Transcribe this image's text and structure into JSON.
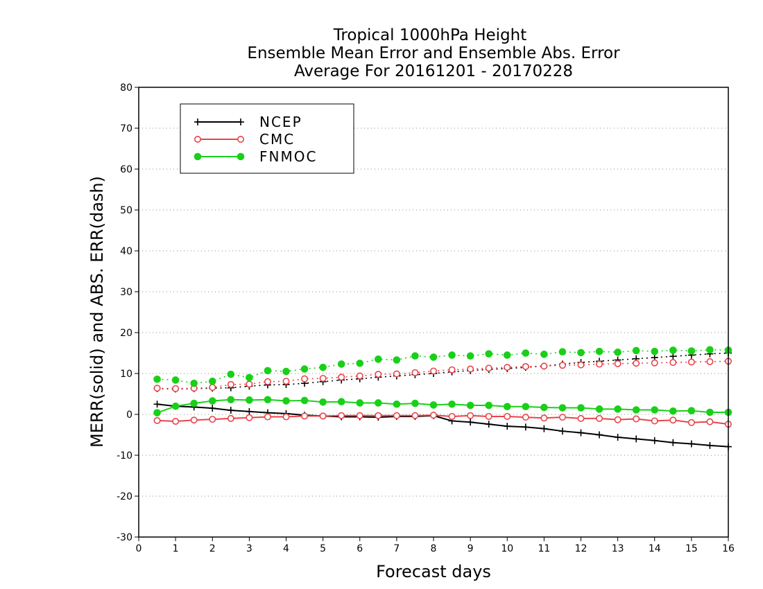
{
  "chart_data": {
    "type": "line",
    "title": [
      "Tropical 1000hPa Height",
      "Ensemble Mean Error and Ensemble Abs. Error",
      "Average For 20161201 - 20170228"
    ],
    "xlabel": "Forecast days",
    "ylabel": "MERR(solid) and ABS. ERR(dash)",
    "xlim": [
      0,
      16
    ],
    "ylim": [
      -30,
      80
    ],
    "x_ticks": [
      0,
      1,
      2,
      3,
      4,
      5,
      6,
      7,
      8,
      9,
      10,
      11,
      12,
      13,
      14,
      15,
      16
    ],
    "y_ticks": [
      -30,
      -20,
      -10,
      0,
      10,
      20,
      30,
      40,
      50,
      60,
      70,
      80
    ],
    "grid": "horizontal dotted",
    "legend_position": "top-left",
    "x": [
      0.5,
      1,
      1.5,
      2,
      2.5,
      3,
      3.5,
      4,
      4.5,
      5,
      5.5,
      6,
      6.5,
      7,
      7.5,
      8,
      8.5,
      9,
      9.5,
      10,
      10.5,
      11,
      11.5,
      12,
      12.5,
      13,
      13.5,
      14,
      14.5,
      15,
      15.5,
      16
    ],
    "series": [
      {
        "name": "NCEP",
        "color": "#000000",
        "marker": "plus",
        "merr": [
          2.5,
          2.0,
          1.8,
          1.5,
          1.0,
          0.7,
          0.4,
          0.2,
          -0.2,
          -0.4,
          -0.6,
          -0.6,
          -0.7,
          -0.5,
          -0.5,
          -0.3,
          -1.6,
          -1.9,
          -2.4,
          -2.9,
          -3.1,
          -3.5,
          -4.1,
          -4.5,
          -5.0,
          -5.6,
          -6.0,
          -6.4,
          -6.9,
          -7.2,
          -7.6,
          -7.9
        ],
        "abs_err": [
          6.3,
          6.2,
          6.3,
          6.4,
          6.5,
          6.9,
          7.2,
          7.3,
          7.6,
          8.0,
          8.4,
          8.7,
          9.1,
          9.4,
          9.7,
          10.0,
          10.4,
          10.7,
          11.0,
          11.2,
          11.5,
          11.8,
          12.3,
          12.7,
          13.0,
          13.3,
          13.6,
          13.9,
          14.2,
          14.5,
          14.8,
          15.0
        ]
      },
      {
        "name": "CMC",
        "color": "#e8434a",
        "marker": "open-circle",
        "merr": [
          -1.5,
          -1.7,
          -1.4,
          -1.2,
          -1.0,
          -0.8,
          -0.6,
          -0.6,
          -0.4,
          -0.4,
          -0.3,
          -0.3,
          -0.3,
          -0.3,
          -0.3,
          -0.2,
          -0.5,
          -0.3,
          -0.5,
          -0.5,
          -0.7,
          -0.9,
          -0.7,
          -1.0,
          -1.0,
          -1.3,
          -1.1,
          -1.6,
          -1.4,
          -2.0,
          -1.8,
          -2.4
        ],
        "abs_err": [
          6.4,
          6.3,
          6.4,
          6.6,
          7.3,
          7.4,
          8.0,
          8.1,
          8.7,
          8.8,
          9.1,
          9.4,
          9.8,
          9.9,
          10.2,
          10.6,
          10.9,
          11.1,
          11.3,
          11.5,
          11.7,
          11.8,
          12.0,
          12.1,
          12.3,
          12.4,
          12.5,
          12.6,
          12.7,
          12.8,
          12.9,
          13.0
        ]
      },
      {
        "name": "FNMOC",
        "color": "#18d018",
        "marker": "filled-circle",
        "merr": [
          0.4,
          2.0,
          2.7,
          3.3,
          3.6,
          3.5,
          3.6,
          3.3,
          3.4,
          3.0,
          3.1,
          2.8,
          2.8,
          2.5,
          2.7,
          2.3,
          2.5,
          2.2,
          2.2,
          1.9,
          1.9,
          1.7,
          1.6,
          1.6,
          1.3,
          1.3,
          1.1,
          1.1,
          0.8,
          0.9,
          0.5,
          0.5
        ],
        "abs_err": [
          8.6,
          8.4,
          7.6,
          8.1,
          9.8,
          9.0,
          10.7,
          10.5,
          11.1,
          11.5,
          12.3,
          12.5,
          13.5,
          13.3,
          14.3,
          14.0,
          14.5,
          14.3,
          14.8,
          14.5,
          15.0,
          14.7,
          15.3,
          15.1,
          15.4,
          15.2,
          15.6,
          15.4,
          15.7,
          15.5,
          15.8,
          15.7
        ]
      }
    ]
  }
}
